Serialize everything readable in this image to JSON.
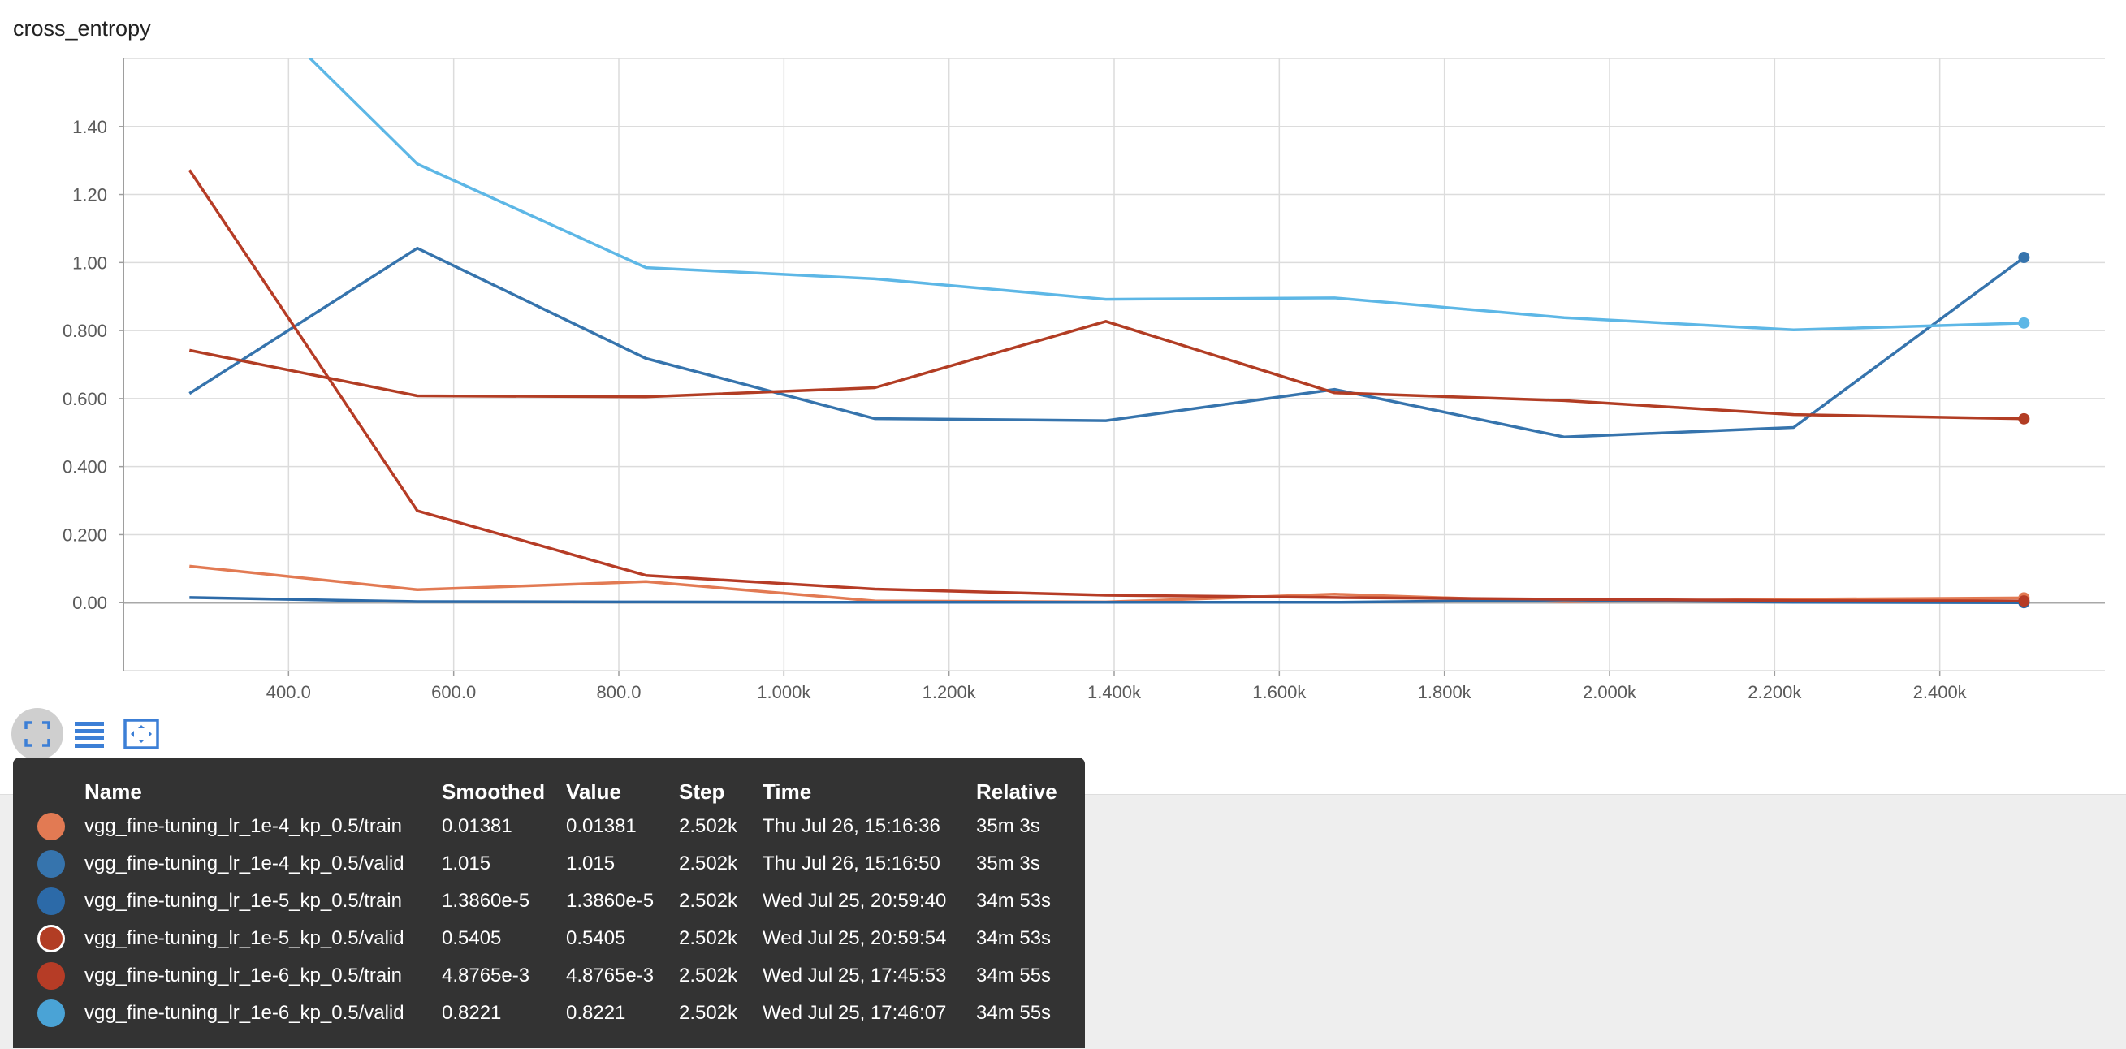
{
  "chart_data": {
    "type": "line",
    "title": "cross_entropy",
    "xlabel": "",
    "ylabel": "",
    "xlim": [
      200,
      2600
    ],
    "ylim": [
      -0.2,
      1.6
    ],
    "x_ticks": [
      400,
      600,
      800,
      1000,
      1200,
      1400,
      1600,
      1800,
      2000,
      2200,
      2400
    ],
    "x_tick_labels": [
      "400.0",
      "600.0",
      "800.0",
      "1.000k",
      "1.200k",
      "1.400k",
      "1.600k",
      "1.800k",
      "2.000k",
      "2.200k",
      "2.400k"
    ],
    "y_ticks": [
      0,
      0.2,
      0.4,
      0.6,
      0.8,
      1.0,
      1.2,
      1.4
    ],
    "y_tick_labels": [
      "0.00",
      "0.200",
      "0.400",
      "0.600",
      "0.800",
      "1.00",
      "1.20",
      "1.40"
    ],
    "grid": true,
    "x": [
      280,
      556,
      833,
      1110,
      1390,
      1667,
      1945,
      2223,
      2502
    ],
    "series": [
      {
        "name": "vgg_fine-tuning_lr_1e-4_kp_0.5/train",
        "color": "#e27a53",
        "values": [
          0.107,
          0.038,
          0.062,
          0.005,
          0.002,
          0.025,
          0.003,
          0.01,
          0.01381
        ]
      },
      {
        "name": "vgg_fine-tuning_lr_1e-4_kp_0.5/valid",
        "color": "#3674ad",
        "values": [
          0.615,
          1.042,
          0.718,
          0.541,
          0.535,
          0.627,
          0.487,
          0.515,
          1.015
        ]
      },
      {
        "name": "vgg_fine-tuning_lr_1e-5_kp_0.5/train",
        "color": "#2c6aa8",
        "values": [
          0.015,
          0.003,
          0.002,
          0.001,
          0.001,
          0.001,
          0.008,
          0.001,
          1.39e-05
        ]
      },
      {
        "name": "vgg_fine-tuning_lr_1e-5_kp_0.5/valid",
        "color": "#b23d24",
        "values": [
          0.742,
          0.608,
          0.605,
          0.632,
          0.827,
          0.617,
          0.594,
          0.553,
          0.5405
        ]
      },
      {
        "name": "vgg_fine-tuning_lr_1e-6_kp_0.5/train",
        "color": "#b63c26",
        "values": [
          1.272,
          0.27,
          0.08,
          0.04,
          0.022,
          0.015,
          0.01,
          0.006,
          0.0048765
        ]
      },
      {
        "name": "vgg_fine-tuning_lr_1e-6_kp_0.5/valid",
        "color": "#5db7e6",
        "values": [
          1.95,
          1.29,
          0.985,
          0.952,
          0.892,
          0.896,
          0.838,
          0.802,
          0.8221
        ]
      }
    ]
  },
  "tooltip": {
    "headers": [
      "Name",
      "Smoothed",
      "Value",
      "Step",
      "Time",
      "Relative"
    ],
    "rows": [
      {
        "name": "vgg_fine-tuning_lr_1e-4_kp_0.5/train",
        "smoothed": "0.01381",
        "value": "0.01381",
        "step": "2.502k",
        "time": "Thu Jul 26, 15:16:36",
        "relative": "35m 3s",
        "color": "#e27a53",
        "ring": false
      },
      {
        "name": "vgg_fine-tuning_lr_1e-4_kp_0.5/valid",
        "smoothed": "1.015",
        "value": "1.015",
        "step": "2.502k",
        "time": "Thu Jul 26, 15:16:50",
        "relative": "35m 3s",
        "color": "#3674ad",
        "ring": false
      },
      {
        "name": "vgg_fine-tuning_lr_1e-5_kp_0.5/train",
        "smoothed": "1.3860e-5",
        "value": "1.3860e-5",
        "step": "2.502k",
        "time": "Wed Jul 25, 20:59:40",
        "relative": "34m 53s",
        "color": "#2c6aa8",
        "ring": false
      },
      {
        "name": "vgg_fine-tuning_lr_1e-5_kp_0.5/valid",
        "smoothed": "0.5405",
        "value": "0.5405",
        "step": "2.502k",
        "time": "Wed Jul 25, 20:59:54",
        "relative": "34m 53s",
        "color": "#b23d24",
        "ring": true
      },
      {
        "name": "vgg_fine-tuning_lr_1e-6_kp_0.5/train",
        "smoothed": "4.8765e-3",
        "value": "4.8765e-3",
        "step": "2.502k",
        "time": "Wed Jul 25, 17:45:53",
        "relative": "34m 55s",
        "color": "#b63c26",
        "ring": false
      },
      {
        "name": "vgg_fine-tuning_lr_1e-6_kp_0.5/valid",
        "smoothed": "0.8221",
        "value": "0.8221",
        "step": "2.502k",
        "time": "Wed Jul 25, 17:46:07",
        "relative": "34m 55s",
        "color": "#4aa3d6",
        "ring": false
      }
    ]
  },
  "toolbar": {
    "icons": [
      "fit-to-data-icon",
      "data-table-icon",
      "expand-icon"
    ],
    "accent": "#3c7fd6"
  }
}
